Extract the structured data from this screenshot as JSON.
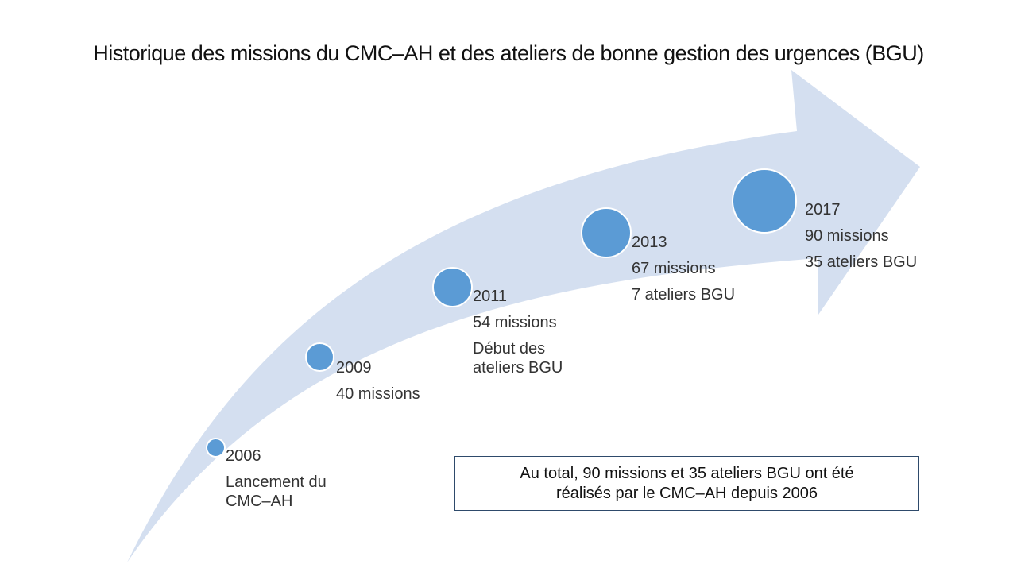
{
  "title": "Historique des missions du CMC–AH et des ateliers de bonne gestion des urgences (BGU)",
  "colors": {
    "arrow_fill": "#d4dff0",
    "dot_fill": "#5b9bd5",
    "box_border": "#2e4a6b"
  },
  "milestones": [
    {
      "year": "2006",
      "lines": [
        "Lancement du CMC–AH"
      ]
    },
    {
      "year": "2009",
      "lines": [
        "40 missions"
      ]
    },
    {
      "year": "2011",
      "lines": [
        "54 missions",
        "Début des ateliers BGU"
      ]
    },
    {
      "year": "2013",
      "lines": [
        "67 missions",
        "7 ateliers BGU"
      ]
    },
    {
      "year": "2017",
      "lines": [
        "90 missions",
        "35 ateliers BGU"
      ]
    }
  ],
  "summary": {
    "line1": "Au total, 90 missions et 35 ateliers BGU ont été",
    "line2": "réalisés par le CMC–AH depuis 2006"
  }
}
